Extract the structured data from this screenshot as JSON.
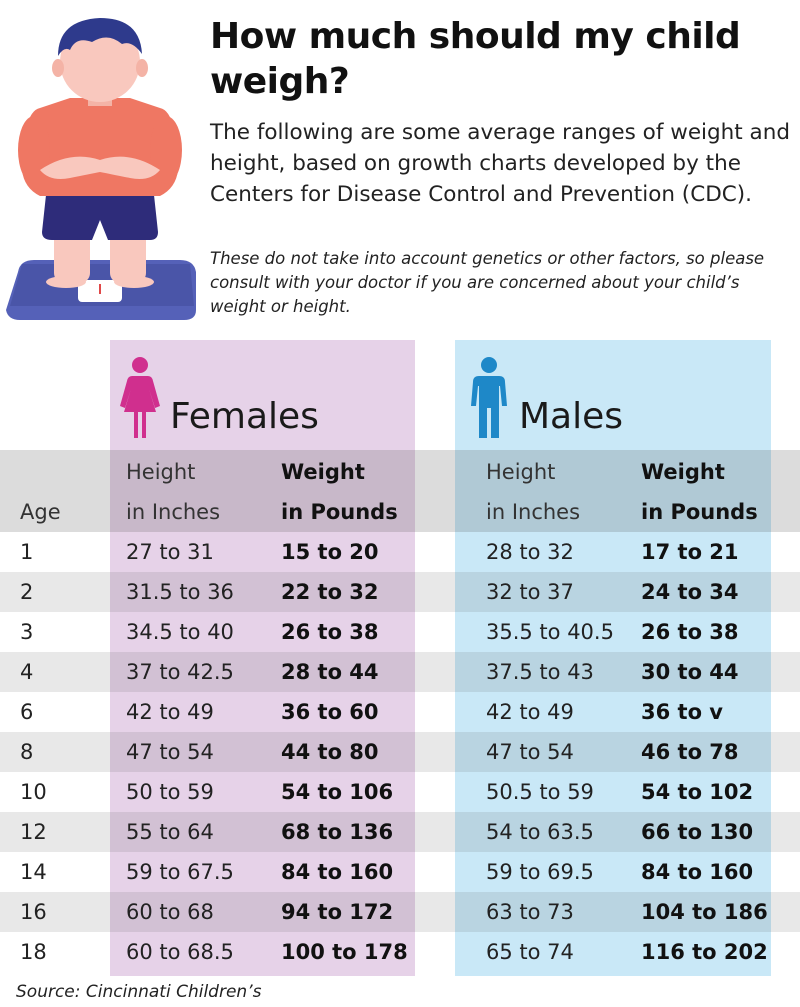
{
  "title": "How much should my child weigh?",
  "intro": "The following are some average ranges of weight and height, based on growth charts developed by the Centers for Disease Control and Prevention (CDC).",
  "note": "These do not take into account genetics or other factors, so please consult with your doctor if you are concerned about your child’s weight or height.",
  "colors": {
    "female_panel": "#e6d2e8",
    "male_panel": "#c9e8f7",
    "female_icon": "#d02f8e",
    "male_icon": "#1e88c8"
  },
  "table": {
    "age_header": "Age",
    "females_label": "Females",
    "males_label": "Males",
    "height_header": [
      "Height",
      "in Inches"
    ],
    "weight_header": [
      "Weight",
      "in Pounds"
    ],
    "rows": [
      {
        "age": "1",
        "f_height": "27 to 31",
        "f_weight": "15 to 20",
        "m_height": "28 to 32",
        "m_weight": "17 to 21"
      },
      {
        "age": "2",
        "f_height": "31.5 to 36",
        "f_weight": "22 to 32",
        "m_height": "32 to 37",
        "m_weight": "24 to 34"
      },
      {
        "age": "3",
        "f_height": "34.5 to 40",
        "f_weight": "26 to 38",
        "m_height": "35.5 to 40.5",
        "m_weight": "26 to 38"
      },
      {
        "age": "4",
        "f_height": "37 to 42.5",
        "f_weight": "28 to 44",
        "m_height": "37.5 to 43",
        "m_weight": "30 to 44"
      },
      {
        "age": "6",
        "f_height": "42 to 49",
        "f_weight": "36 to 60",
        "m_height": "42 to 49",
        "m_weight": "36 to v"
      },
      {
        "age": "8",
        "f_height": "47 to 54",
        "f_weight": "44 to 80",
        "m_height": "47 to 54",
        "m_weight": "46 to 78"
      },
      {
        "age": "10",
        "f_height": "50 to 59",
        "f_weight": "54 to 106",
        "m_height": "50.5 to 59",
        "m_weight": "54 to 102"
      },
      {
        "age": "12",
        "f_height": "55 to 64",
        "f_weight": "68 to 136",
        "m_height": "54 to 63.5",
        "m_weight": "66 to 130"
      },
      {
        "age": "14",
        "f_height": "59 to 67.5",
        "f_weight": "84 to 160",
        "m_height": "59 to 69.5",
        "m_weight": "84 to 160"
      },
      {
        "age": "16",
        "f_height": "60 to 68",
        "f_weight": "94 to 172",
        "m_height": "63 to 73",
        "m_weight": "104 to 186"
      },
      {
        "age": "18",
        "f_height": "60 to 68.5",
        "f_weight": "100 to 178",
        "m_height": "65 to 74",
        "m_weight": "116 to 202"
      }
    ]
  },
  "source": "Source: Cincinnati Children’s"
}
